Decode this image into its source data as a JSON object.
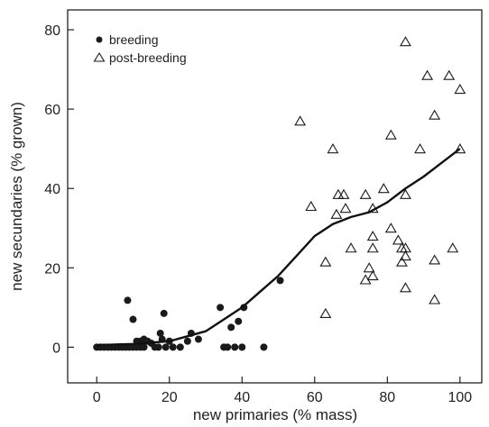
{
  "chart_data": {
    "type": "scatter",
    "xlabel": "new primaries (% mass)",
    "ylabel": "new secundaries (% grown)",
    "xlim": [
      -8,
      106
    ],
    "ylim": [
      -9,
      85
    ],
    "xticks": [
      0,
      20,
      40,
      60,
      80,
      100
    ],
    "yticks": [
      0,
      20,
      40,
      60,
      80
    ],
    "grid": false,
    "legend_position": "top-left",
    "series": [
      {
        "name": "breeding",
        "marker": "filled-circle",
        "color": "#1a1a1a",
        "points": [
          [
            0,
            0
          ],
          [
            1,
            0
          ],
          [
            2,
            0
          ],
          [
            3,
            0
          ],
          [
            4,
            0
          ],
          [
            5,
            0
          ],
          [
            6,
            0
          ],
          [
            7,
            0
          ],
          [
            8,
            0
          ],
          [
            9,
            0
          ],
          [
            10,
            0
          ],
          [
            11,
            0
          ],
          [
            12,
            0
          ],
          [
            13,
            0
          ],
          [
            8.5,
            11.8
          ],
          [
            10,
            7
          ],
          [
            11,
            1.5
          ],
          [
            12,
            1.5
          ],
          [
            13,
            2
          ],
          [
            14,
            1.5
          ],
          [
            15,
            1
          ],
          [
            16,
            0
          ],
          [
            17,
            0
          ],
          [
            17.5,
            3.5
          ],
          [
            18,
            2
          ],
          [
            18.5,
            8.5
          ],
          [
            19,
            0
          ],
          [
            20,
            1.5
          ],
          [
            21,
            0
          ],
          [
            23,
            0
          ],
          [
            25,
            1.5
          ],
          [
            26,
            3.5
          ],
          [
            28,
            2
          ],
          [
            34,
            10
          ],
          [
            35,
            0
          ],
          [
            36,
            0
          ],
          [
            37,
            5
          ],
          [
            38,
            0
          ],
          [
            39,
            6.5
          ],
          [
            40,
            0
          ],
          [
            40.5,
            10
          ],
          [
            46,
            0
          ],
          [
            50.5,
            16.8
          ]
        ]
      },
      {
        "name": "post-breeding",
        "marker": "open-triangle",
        "color": "#1a1a1a",
        "points": [
          [
            56,
            57
          ],
          [
            59,
            35.5
          ],
          [
            63,
            21.5
          ],
          [
            63,
            8.5
          ],
          [
            65,
            50
          ],
          [
            66,
            33.5
          ],
          [
            66.5,
            38.5
          ],
          [
            68,
            38.5
          ],
          [
            68.5,
            35
          ],
          [
            70,
            25
          ],
          [
            74,
            38.5
          ],
          [
            74,
            17
          ],
          [
            75,
            20
          ],
          [
            76,
            18
          ],
          [
            76,
            25
          ],
          [
            76,
            28
          ],
          [
            76,
            35
          ],
          [
            79,
            40
          ],
          [
            81,
            53.5
          ],
          [
            81,
            30
          ],
          [
            83,
            27
          ],
          [
            84,
            25
          ],
          [
            84,
            21.5
          ],
          [
            85,
            38.5
          ],
          [
            85,
            77
          ],
          [
            85,
            25
          ],
          [
            85,
            23
          ],
          [
            85,
            15
          ],
          [
            89,
            50
          ],
          [
            91,
            68.5
          ],
          [
            93,
            58.5
          ],
          [
            93,
            22
          ],
          [
            93,
            12
          ],
          [
            97,
            68.5
          ],
          [
            98,
            25
          ],
          [
            100,
            65
          ],
          [
            100,
            50
          ]
        ]
      },
      {
        "name": "",
        "type": "line",
        "color": "#111111",
        "points": [
          [
            0,
            0.5
          ],
          [
            10,
            0.8
          ],
          [
            20,
            1.5
          ],
          [
            30,
            4
          ],
          [
            40,
            10
          ],
          [
            45,
            14
          ],
          [
            50,
            18
          ],
          [
            55,
            23
          ],
          [
            60,
            28
          ],
          [
            65,
            31
          ],
          [
            70,
            32.8
          ],
          [
            75,
            34
          ],
          [
            80,
            36.5
          ],
          [
            85,
            40
          ],
          [
            90,
            43
          ],
          [
            95,
            46.5
          ],
          [
            100,
            50
          ]
        ]
      }
    ]
  }
}
